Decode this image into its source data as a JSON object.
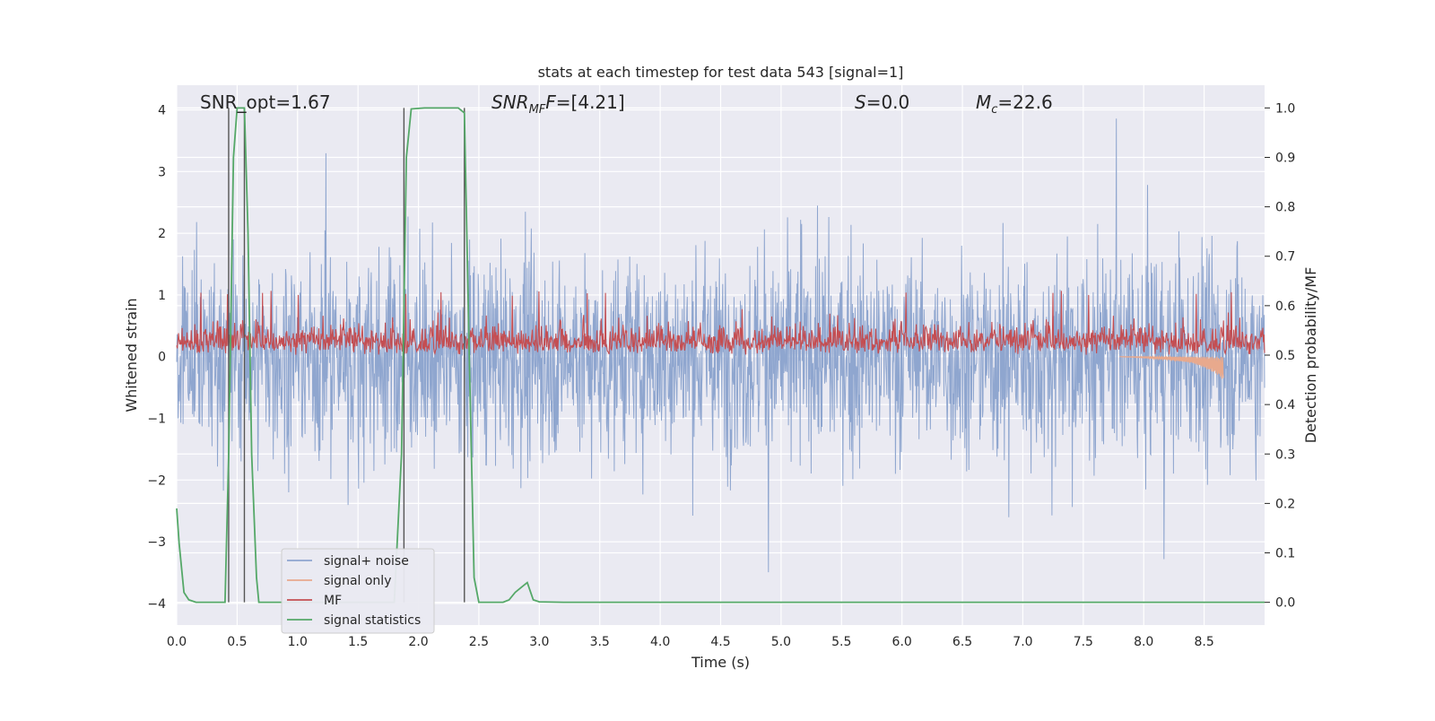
{
  "chart_data": {
    "type": "line",
    "title": "stats at each timestep for test data 543 [signal=1]",
    "xlabel": "Time (s)",
    "ylabel_left": "Whitened strain",
    "ylabel_right": "Detection probability/MF",
    "xlim": [
      0.0,
      9.0
    ],
    "ylim_left": [
      -4.35,
      4.4
    ],
    "ylim_right": [
      -0.046,
      1.046
    ],
    "grid": true,
    "legend_position": "lower-left",
    "x_ticks": [
      "0.0",
      "0.5",
      "1.0",
      "1.5",
      "2.0",
      "2.5",
      "3.0",
      "3.5",
      "4.0",
      "4.5",
      "5.0",
      "5.5",
      "6.0",
      "6.5",
      "7.0",
      "7.5",
      "8.0",
      "8.5"
    ],
    "y_ticks_left": [
      "−4",
      "−3",
      "−2",
      "−1",
      "0",
      "1",
      "2",
      "3",
      "4"
    ],
    "y_ticks_right": [
      "0.0",
      "0.1",
      "0.2",
      "0.3",
      "0.4",
      "0.5",
      "0.6",
      "0.7",
      "0.8",
      "0.9",
      "1.0"
    ],
    "annotations": {
      "snr_opt": "SNR_opt=1.67",
      "snr_mf_sym": "SNR",
      "snr_mf_sub": "MF",
      "snr_mf_rest": "=[4.21]",
      "s_sym": "S",
      "s_rest": "=0.0",
      "mc_sym": "M",
      "mc_sub": "c",
      "mc_rest": "=22.6"
    },
    "series": [
      {
        "name": "signal+ noise",
        "color": "#8fa6cf",
        "axis": "left",
        "kind": "noise",
        "amplitude_envelope": [
          -4.0,
          4.0
        ]
      },
      {
        "name": "signal only",
        "color": "#e8a98d",
        "axis": "left",
        "kind": "chirp",
        "x": [
          7.8,
          8.0,
          8.2,
          8.4,
          8.5,
          8.6,
          8.66
        ],
        "y": [
          0.0,
          -0.02,
          -0.05,
          -0.1,
          -0.18,
          -0.28,
          -0.38
        ]
      },
      {
        "name": "MF",
        "color": "#c44e52",
        "axis": "right",
        "kind": "band",
        "baseline": 0.5,
        "typical_max": 0.6,
        "peak_max": 0.63
      },
      {
        "name": "signal statistics",
        "color": "#55a868",
        "axis": "right",
        "x": [
          0.0,
          0.02,
          0.06,
          0.1,
          0.16,
          0.4,
          0.43,
          0.47,
          0.5,
          0.56,
          0.59,
          0.62,
          0.66,
          0.68,
          0.7,
          1.8,
          1.86,
          1.9,
          1.94,
          2.05,
          2.2,
          2.33,
          2.38,
          2.42,
          2.46,
          2.5,
          2.7,
          2.75,
          2.8,
          2.85,
          2.9,
          2.95,
          3.0,
          3.2,
          9.0
        ],
        "y": [
          0.19,
          0.12,
          0.02,
          0.005,
          0.0,
          0.0,
          0.3,
          0.9,
          1.0,
          1.0,
          0.75,
          0.3,
          0.05,
          0.0,
          0.0,
          0.0,
          0.3,
          0.9,
          0.998,
          1.0,
          1.0,
          1.0,
          0.99,
          0.5,
          0.05,
          0.0,
          0.0,
          0.005,
          0.02,
          0.03,
          0.04,
          0.005,
          0.001,
          0.0,
          0.0
        ]
      }
    ],
    "vertical_markers": [
      {
        "x": 0.43,
        "y_range": [
          0.0,
          1.0
        ]
      },
      {
        "x": 0.56,
        "y_range": [
          0.0,
          1.0
        ]
      },
      {
        "x": 1.88,
        "y_range": [
          0.0,
          1.0
        ]
      },
      {
        "x": 2.38,
        "y_range": [
          0.0,
          1.0
        ]
      }
    ]
  }
}
